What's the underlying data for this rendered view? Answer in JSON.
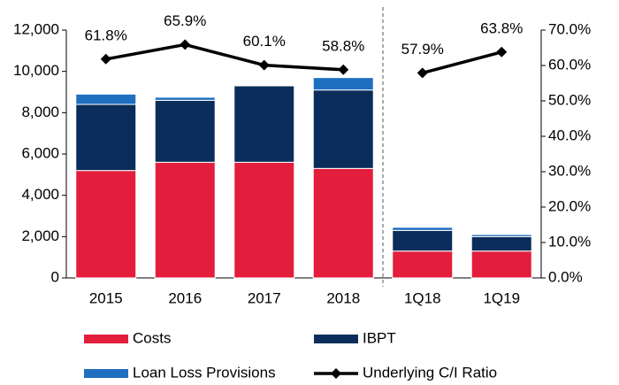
{
  "chart_data": {
    "type": "stacked_bar_line",
    "categories": [
      "2015",
      "2016",
      "2017",
      "2018",
      "1Q18",
      "1Q19"
    ],
    "divider_after": 3,
    "series": [
      {
        "name": "Costs",
        "color": "#e31d3c",
        "values": [
          5200,
          5600,
          5600,
          5300,
          1300,
          1300
        ]
      },
      {
        "name": "IBPT",
        "color": "#0b2d5b",
        "values": [
          3200,
          3000,
          3700,
          3800,
          1000,
          700
        ]
      },
      {
        "name": "Loan Loss Provisions",
        "color": "#1f6fc0",
        "values": [
          500,
          150,
          0,
          600,
          150,
          100
        ]
      },
      {
        "name": "Underlying C/I Ratio",
        "color": "#000000",
        "axis": "y2",
        "type": "line",
        "values": [
          61.8,
          65.9,
          60.1,
          58.8,
          57.9,
          63.8
        ],
        "value_labels": [
          "61.8%",
          "65.9%",
          "60.1%",
          "58.8%",
          "57.9%",
          "63.8%"
        ]
      }
    ],
    "ylim": [
      0,
      12000
    ],
    "yticks": [
      0,
      {
        "value": 2000,
        "label": "2,000"
      },
      {
        "value": 4000,
        "label": "4,000"
      },
      {
        "value": 6000,
        "label": "6,000"
      },
      {
        "value": 8000,
        "label": "8,000"
      },
      {
        "value": 10000,
        "label": "10,000"
      },
      {
        "value": 12000,
        "label": "12,000"
      }
    ],
    "y2lim": [
      0,
      70
    ],
    "y2ticks": [
      {
        "value": 0,
        "label": "0.0%"
      },
      {
        "value": 10,
        "label": "10.0%"
      },
      {
        "value": 20,
        "label": "20.0%"
      },
      {
        "value": 30,
        "label": "30.0%"
      },
      {
        "value": 40,
        "label": "40.0%"
      },
      {
        "value": 50,
        "label": "50.0%"
      },
      {
        "value": 60,
        "label": "60.0%"
      },
      {
        "value": 70,
        "label": "70.0%"
      }
    ]
  }
}
